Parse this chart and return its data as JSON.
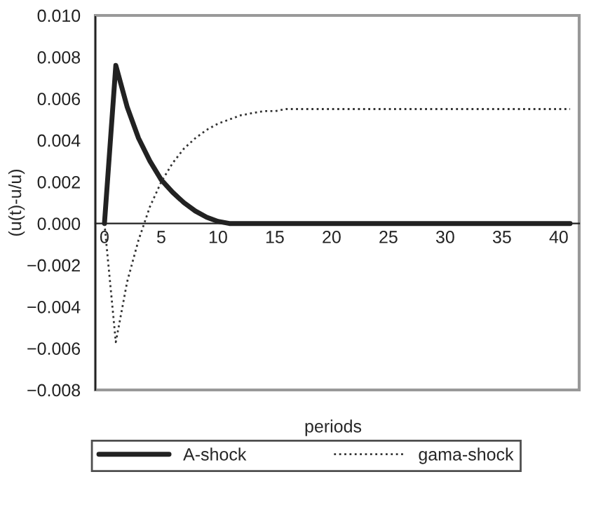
{
  "chart_data": {
    "type": "line",
    "xlabel": "periods",
    "ylabel": "(u(t)-u/u)",
    "x": [
      0,
      1,
      2,
      3,
      4,
      5,
      6,
      7,
      8,
      9,
      10,
      11,
      12,
      13,
      14,
      15,
      16,
      17,
      18,
      19,
      20,
      21,
      22,
      23,
      24,
      25,
      26,
      27,
      28,
      29,
      30,
      31,
      32,
      33,
      34,
      35,
      36,
      37,
      38,
      39,
      40,
      41
    ],
    "series": [
      {
        "name": "A-shock",
        "color": "#222222",
        "line_style": "solid",
        "values": [
          0,
          0.0076,
          0.0056,
          0.0041,
          0.003,
          0.0021,
          0.0015,
          0.001,
          0.0006,
          0.0003,
          0.0001,
          0,
          0,
          0,
          0,
          0,
          0,
          0,
          0,
          0,
          0,
          0,
          0,
          0,
          0,
          0,
          0,
          0,
          0,
          0,
          0,
          0,
          0,
          0,
          0,
          0,
          0,
          0,
          0,
          0,
          0,
          0
        ]
      },
      {
        "name": "gama-shock",
        "color": "#333333",
        "line_style": "dotted",
        "values": [
          0,
          -0.0057,
          -0.0028,
          -0.0008,
          0.0008,
          0.002,
          0.0029,
          0.0036,
          0.0041,
          0.0045,
          0.0048,
          0.005,
          0.0052,
          0.0053,
          0.0054,
          0.0054,
          0.0055,
          0.0055,
          0.0055,
          0.0055,
          0.0055,
          0.0055,
          0.0055,
          0.0055,
          0.0055,
          0.0055,
          0.0055,
          0.0055,
          0.0055,
          0.0055,
          0.0055,
          0.0055,
          0.0055,
          0.0055,
          0.0055,
          0.0055,
          0.0055,
          0.0055,
          0.0055,
          0.0055,
          0.0055,
          0.0055
        ]
      }
    ],
    "xlim": [
      -0.8,
      41.8
    ],
    "xticks": [
      0,
      5,
      10,
      15,
      20,
      25,
      30,
      35,
      40
    ],
    "ylim": [
      -0.008,
      0.01
    ],
    "yticks": [
      {
        "value": -0.008,
        "label": "−0.008"
      },
      {
        "value": -0.006,
        "label": "−0.006"
      },
      {
        "value": -0.004,
        "label": "−0.004"
      },
      {
        "value": -0.002,
        "label": "−0.002"
      },
      {
        "value": 0,
        "label": "0.000"
      },
      {
        "value": 0.002,
        "label": "0.002"
      },
      {
        "value": 0.004,
        "label": "0.004"
      },
      {
        "value": 0.006,
        "label": "0.006"
      },
      {
        "value": 0.008,
        "label": "0.008"
      },
      {
        "value": 0.01,
        "label": "0.010"
      }
    ],
    "grid": false,
    "legend": "bottom",
    "marker": "none"
  }
}
